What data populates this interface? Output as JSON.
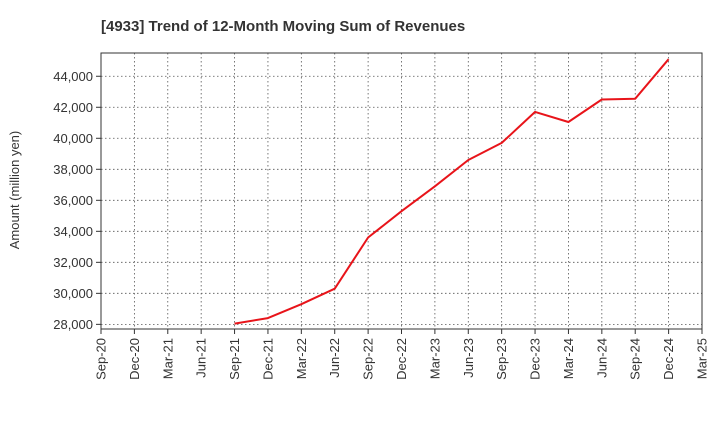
{
  "chart_data": {
    "type": "line",
    "title": "[4933]  Trend of 12-Month Moving Sum of Revenues",
    "ylabel": "Amount (million yen)",
    "xlabel": "",
    "x_ticks": [
      "Sep-20",
      "Dec-20",
      "Mar-21",
      "Jun-21",
      "Sep-21",
      "Dec-21",
      "Mar-22",
      "Jun-22",
      "Sep-22",
      "Dec-22",
      "Mar-23",
      "Jun-23",
      "Sep-23",
      "Dec-23",
      "Mar-24",
      "Jun-24",
      "Sep-24",
      "Dec-24",
      "Mar-25"
    ],
    "y_ticks": [
      28000,
      30000,
      32000,
      34000,
      36000,
      38000,
      40000,
      42000,
      44000
    ],
    "y_tick_labels": [
      "28,000",
      "30,000",
      "32,000",
      "34,000",
      "36,000",
      "38,000",
      "40,000",
      "42,000",
      "44,000"
    ],
    "ylim": [
      27700,
      45500
    ],
    "grid": true,
    "series": [
      {
        "color": "#e8141a",
        "x": [
          "Sep-21",
          "Dec-21",
          "Mar-22",
          "Jun-22",
          "Sep-22",
          "Dec-22",
          "Mar-23",
          "Jun-23",
          "Sep-23",
          "Dec-23",
          "Mar-24",
          "Jun-24",
          "Sep-24",
          "Dec-24"
        ],
        "values": [
          28050,
          28400,
          29300,
          30300,
          33600,
          35300,
          36900,
          38600,
          39700,
          41700,
          41050,
          42500,
          42550,
          45100
        ]
      }
    ]
  }
}
